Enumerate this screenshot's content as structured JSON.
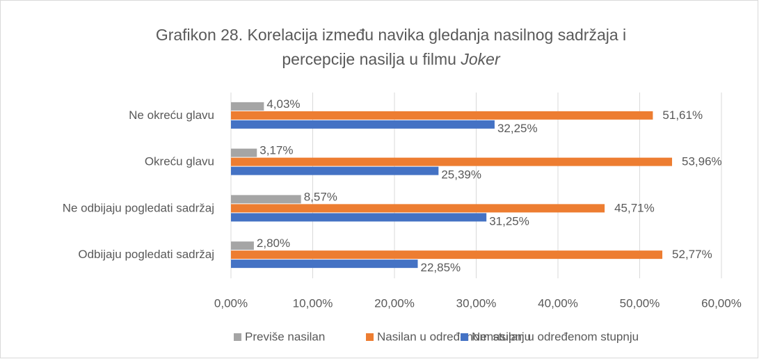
{
  "chart_data": {
    "type": "hbar",
    "title": [
      "Grafikon 28. Korelacija između navika gledanja nasilnog sadržaja i",
      "percepcije nasilja u filmu",
      "Joker"
    ],
    "categories": [
      "Ne okreću glavu",
      "Okreću glavu",
      "Ne odbijaju pogledati sadržaj",
      "Odbijaju pogledati sadržaj"
    ],
    "series": [
      {
        "name": "Previše nasilan",
        "color": "#a5a5a5",
        "values": [
          4.03,
          3.17,
          8.57,
          2.8
        ],
        "value_labels": [
          "4,03%",
          "3,17%",
          "8,57%",
          "2,80%"
        ]
      },
      {
        "name": "Nasilan u određenom stupnju",
        "color": "#ed7d31",
        "values": [
          51.61,
          53.96,
          45.71,
          52.77
        ],
        "value_labels": [
          "51,61%",
          "53,96%",
          "45,71%",
          "52,77%"
        ]
      },
      {
        "name": "Nenasilan u određenom stupnju",
        "color": "#4472c4",
        "values": [
          32.25,
          25.39,
          31.25,
          22.85
        ],
        "value_labels": [
          "32,25%",
          "25,39%",
          "31,25%",
          "22,85%"
        ]
      }
    ],
    "xlim": [
      0,
      60
    ],
    "xticks": [
      {
        "value": 0,
        "label": "0,00%"
      },
      {
        "value": 10,
        "label": "10,00%"
      },
      {
        "value": 20,
        "label": "20,00%"
      },
      {
        "value": 30,
        "label": "30,00%"
      },
      {
        "value": 40,
        "label": "40,00%"
      },
      {
        "value": 50,
        "label": "50,00%"
      },
      {
        "value": 60,
        "label": "60,00%"
      }
    ],
    "grid": true,
    "legend": "bottom"
  }
}
